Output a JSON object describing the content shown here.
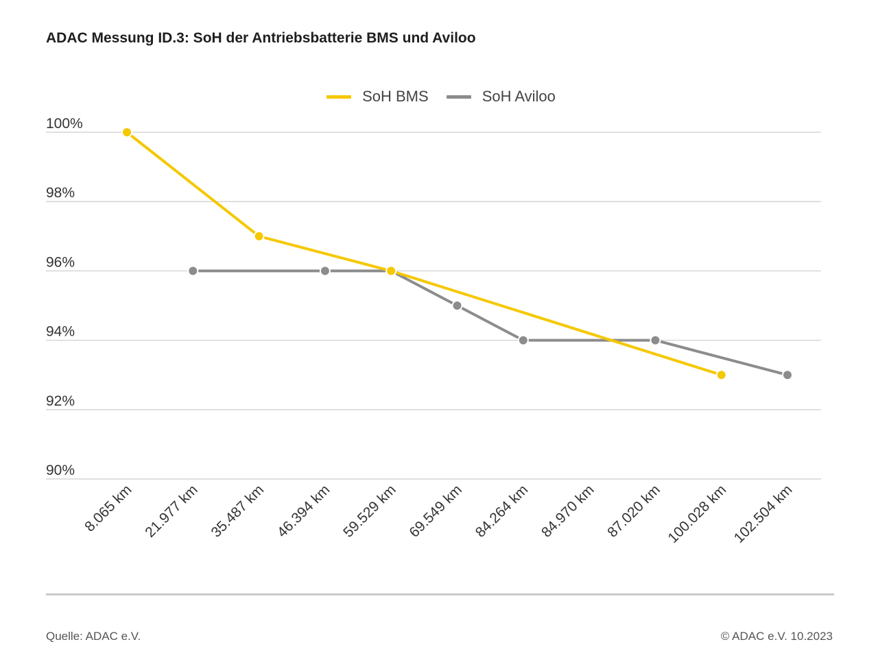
{
  "title": "ADAC Messung ID.3: SoH der Antriebsbatterie BMS und Aviloo",
  "footer": {
    "source": "Quelle: ADAC e.V.",
    "copyright": "© ADAC e.V. 10.2023"
  },
  "colors": {
    "bms": "#F5C800",
    "aviloo": "#8C8C8C",
    "grid": "#d6d6d6",
    "text": "#333333"
  },
  "chart_data": {
    "type": "line",
    "title": "ADAC Messung ID.3: SoH der Antriebsbatterie BMS und Aviloo",
    "xlabel": "",
    "ylabel": "",
    "categories": [
      "8.065 km",
      "21.977 km",
      "35.487 km",
      "46.394 km",
      "59.529 km",
      "69.549 km",
      "84.264 km",
      "84.970 km",
      "87.020 km",
      "100.028 km",
      "102.504 km"
    ],
    "yticks": [
      "100%",
      "98%",
      "96%",
      "94%",
      "92%",
      "90%"
    ],
    "ytick_values": [
      100,
      98,
      96,
      94,
      92,
      90
    ],
    "ylim": [
      90,
      100
    ],
    "grid": true,
    "legend_position": "top-center",
    "series": [
      {
        "name": "SoH BMS",
        "color": "#F5C800",
        "values": [
          100,
          null,
          97,
          null,
          96,
          null,
          null,
          null,
          null,
          93,
          null
        ]
      },
      {
        "name": "SoH Aviloo",
        "color": "#8C8C8C",
        "values": [
          null,
          96,
          null,
          96,
          96,
          95,
          94,
          null,
          94,
          null,
          93
        ]
      }
    ]
  }
}
